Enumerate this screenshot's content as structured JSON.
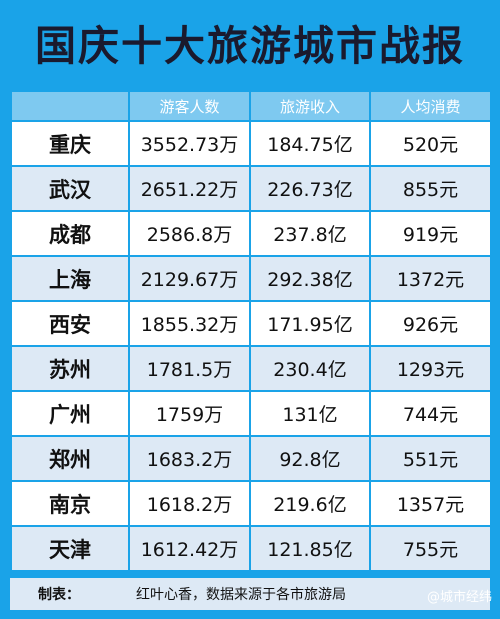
{
  "title": "国庆十大旅游城市战报",
  "table": {
    "headers": [
      "",
      "游客人数",
      "旅游收入",
      "人均消费"
    ],
    "rows": [
      {
        "city": "重庆",
        "visitors": "3552.73万",
        "revenue": "184.75亿",
        "per_capita": "520元"
      },
      {
        "city": "武汉",
        "visitors": "2651.22万",
        "revenue": "226.73亿",
        "per_capita": "855元"
      },
      {
        "city": "成都",
        "visitors": "2586.8万",
        "revenue": "237.8亿",
        "per_capita": "919元"
      },
      {
        "city": "上海",
        "visitors": "2129.67万",
        "revenue": "292.38亿",
        "per_capita": "1372元"
      },
      {
        "city": "西安",
        "visitors": "1855.32万",
        "revenue": "171.95亿",
        "per_capita": "926元"
      },
      {
        "city": "苏州",
        "visitors": "1781.5万",
        "revenue": "230.4亿",
        "per_capita": "1293元"
      },
      {
        "city": "广州",
        "visitors": "1759万",
        "revenue": "131亿",
        "per_capita": "744元"
      },
      {
        "city": "郑州",
        "visitors": "1683.2万",
        "revenue": "92.8亿",
        "per_capita": "551元"
      },
      {
        "city": "南京",
        "visitors": "1618.2万",
        "revenue": "219.6亿",
        "per_capita": "1357元"
      },
      {
        "city": "天津",
        "visitors": "1612.42万",
        "revenue": "121.85亿",
        "per_capita": "755元"
      }
    ]
  },
  "footer": {
    "label": "制表：",
    "text": "红叶心香，数据来源于各市旅游局"
  },
  "watermark": {
    "text": "@城市经纬",
    "icon": "at-icon"
  },
  "colors": {
    "background": "#1aa3e8",
    "header_row": "#7ec9f0",
    "row_light": "#ffffff",
    "row_dark": "#dde9f5"
  }
}
